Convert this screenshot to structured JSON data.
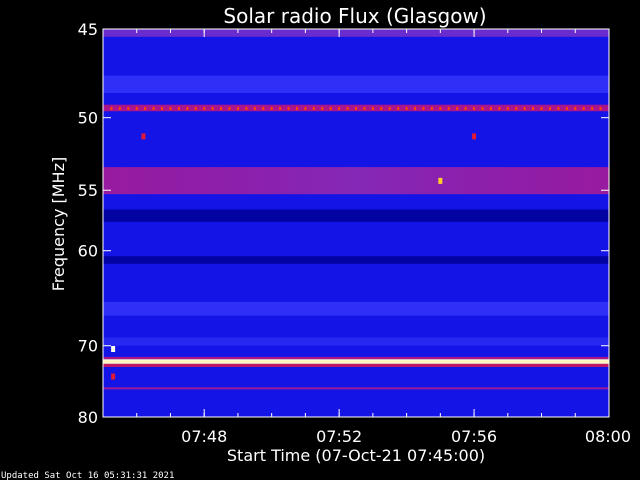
{
  "chart_data": {
    "type": "heatmap",
    "title": "Solar radio Flux (Glasgow)",
    "xlabel": "Start Time (07-Oct-21 07:45:00)",
    "ylabel": "Frequency [MHz]",
    "x_ticks": [
      "07:48",
      "07:52",
      "07:56",
      "08:00"
    ],
    "x_tick_minutes": [
      3,
      7,
      11,
      15
    ],
    "xlim_minutes": [
      0,
      15
    ],
    "y_ticks": [
      45,
      50,
      55,
      60,
      70,
      80
    ],
    "ylim": [
      80,
      45
    ],
    "y_scale": "reciprocal",
    "colormap": "blue-red-yellow-white",
    "background_intensity": 0.35,
    "bands": [
      {
        "f_low": 45.0,
        "f_high": 45.4,
        "intensity": 0.55
      },
      {
        "f_low": 47.5,
        "f_high": 48.5,
        "intensity": 0.45
      },
      {
        "f_low": 49.2,
        "f_high": 49.6,
        "intensity": 0.62
      },
      {
        "f_low": 53.3,
        "f_high": 55.3,
        "intensity": 0.6
      },
      {
        "f_low": 56.5,
        "f_high": 57.5,
        "intensity": 0.22
      },
      {
        "f_low": 60.5,
        "f_high": 61.2,
        "intensity": 0.22
      },
      {
        "f_low": 65.0,
        "f_high": 66.5,
        "intensity": 0.45
      },
      {
        "f_low": 69.0,
        "f_high": 70.0,
        "intensity": 0.42
      },
      {
        "f_low": 71.4,
        "f_high": 71.7,
        "intensity": 0.62
      },
      {
        "f_low": 71.7,
        "f_high": 72.3,
        "intensity": 0.98
      },
      {
        "f_low": 72.3,
        "f_high": 72.7,
        "intensity": 0.66
      },
      {
        "f_low": 75.5,
        "f_high": 75.8,
        "intensity": 0.6
      }
    ],
    "spots": [
      {
        "time_min": 1.2,
        "freq": 51.2,
        "intensity": 0.7
      },
      {
        "time_min": 10.0,
        "freq": 54.3,
        "intensity": 0.9
      },
      {
        "time_min": 11.0,
        "freq": 51.2,
        "intensity": 0.7
      },
      {
        "time_min": 0.3,
        "freq": 70.4,
        "intensity": 1.0
      },
      {
        "time_min": 0.3,
        "freq": 74.0,
        "intensity": 0.7
      }
    ],
    "dotted_line_freq": 49.4
  },
  "footer": {
    "updated_text": "Updated Sat Oct 16 05:31:31 2021"
  }
}
